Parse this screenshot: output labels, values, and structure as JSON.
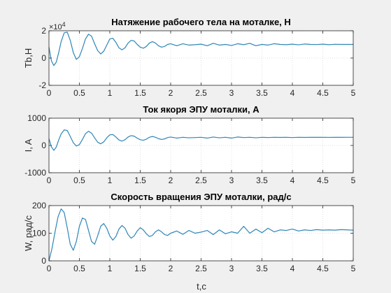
{
  "figure": {
    "xlabel": "t,c"
  },
  "chart_data": [
    {
      "type": "line",
      "title": "Натяжение рабочего тела на моталке, Н",
      "ylabel": "Tb,H",
      "exponent_base": "×10",
      "exponent_power": "4",
      "xlim": [
        0,
        5
      ],
      "ylim": [
        -2,
        2
      ],
      "xticks": [
        0,
        0.5,
        1,
        1.5,
        2,
        2.5,
        3,
        3.5,
        4,
        4.5,
        5
      ],
      "yticks": [
        -2,
        0,
        2
      ],
      "grid": true,
      "line_color": "#2e86b8",
      "series": [
        {
          "x": [
            0,
            0.04,
            0.08,
            0.12,
            0.16,
            0.2,
            0.25,
            0.3,
            0.35,
            0.4,
            0.45,
            0.5,
            0.55,
            0.6,
            0.65,
            0.7,
            0.75,
            0.8,
            0.85,
            0.9,
            0.95,
            1.0,
            1.05,
            1.1,
            1.15,
            1.2,
            1.25,
            1.3,
            1.35,
            1.4,
            1.45,
            1.5,
            1.55,
            1.6,
            1.65,
            1.7,
            1.75,
            1.8,
            1.85,
            1.9,
            1.95,
            2.0,
            2.1,
            2.2,
            2.3,
            2.4,
            2.5,
            2.6,
            2.7,
            2.8,
            2.9,
            3.0,
            3.1,
            3.2,
            3.3,
            3.4,
            3.5,
            3.6,
            3.7,
            3.8,
            3.9,
            4.0,
            4.1,
            4.2,
            4.3,
            4.4,
            4.5,
            4.6,
            4.7,
            4.8,
            4.9,
            5.0
          ],
          "y": [
            0.8,
            -0.2,
            -0.55,
            -0.3,
            0.4,
            1.2,
            1.85,
            1.9,
            1.3,
            0.4,
            -0.1,
            0.1,
            0.7,
            1.4,
            1.75,
            1.6,
            1.05,
            0.55,
            0.3,
            0.5,
            0.95,
            1.4,
            1.45,
            1.15,
            0.75,
            0.6,
            0.75,
            1.1,
            1.3,
            1.25,
            1.0,
            0.8,
            0.72,
            0.85,
            1.1,
            1.2,
            1.1,
            0.9,
            0.8,
            0.85,
            1.0,
            1.05,
            0.9,
            1.05,
            0.95,
            0.98,
            1.02,
            0.9,
            1.08,
            0.95,
            1.0,
            0.92,
            1.05,
            0.98,
            1.08,
            0.9,
            1.0,
            0.95,
            1.05,
            1.0,
            0.98,
            1.02,
            0.97,
            1.03,
            1.0,
            0.99,
            1.02,
            0.98,
            1.01,
            1.0,
            1.0,
            1.0
          ]
        }
      ]
    },
    {
      "type": "line",
      "title": "Ток якоря ЭПУ моталки, А",
      "ylabel": "I, A",
      "xlim": [
        0,
        5
      ],
      "ylim": [
        -1000,
        1000
      ],
      "xticks": [
        0,
        0.5,
        1,
        1.5,
        2,
        2.5,
        3,
        3.5,
        4,
        4.5,
        5
      ],
      "yticks": [
        -1000,
        0,
        1000
      ],
      "grid": true,
      "line_color": "#2e86b8",
      "series": [
        {
          "x": [
            0,
            0.04,
            0.08,
            0.12,
            0.16,
            0.2,
            0.25,
            0.3,
            0.35,
            0.4,
            0.45,
            0.5,
            0.55,
            0.6,
            0.65,
            0.7,
            0.75,
            0.8,
            0.85,
            0.9,
            0.95,
            1.0,
            1.05,
            1.1,
            1.15,
            1.2,
            1.25,
            1.3,
            1.35,
            1.4,
            1.45,
            1.5,
            1.55,
            1.6,
            1.65,
            1.7,
            1.75,
            1.8,
            1.85,
            1.9,
            1.95,
            2.0,
            2.1,
            2.2,
            2.3,
            2.4,
            2.5,
            2.6,
            2.7,
            2.8,
            2.9,
            3.0,
            3.1,
            3.2,
            3.3,
            3.4,
            3.5,
            3.6,
            3.7,
            3.8,
            3.9,
            4.0,
            4.1,
            4.2,
            4.3,
            4.4,
            4.5,
            4.6,
            4.7,
            4.8,
            4.9,
            5.0
          ],
          "y": [
            250,
            -50,
            -180,
            -60,
            200,
            420,
            570,
            550,
            330,
            100,
            -20,
            30,
            220,
            430,
            520,
            450,
            280,
            120,
            60,
            130,
            280,
            390,
            400,
            310,
            200,
            160,
            210,
            310,
            360,
            340,
            270,
            210,
            190,
            230,
            300,
            330,
            300,
            250,
            220,
            240,
            290,
            310,
            270,
            300,
            280,
            290,
            300,
            270,
            310,
            280,
            300,
            270,
            310,
            290,
            300,
            280,
            300,
            290,
            300,
            295,
            300,
            290,
            300,
            295,
            300,
            298,
            300,
            296,
            300,
            298,
            300,
            300
          ]
        }
      ]
    },
    {
      "type": "line",
      "title": "Скорость вращения ЭПУ моталки, рад/с",
      "ylabel": "W, рад/с",
      "xlim": [
        0,
        5
      ],
      "ylim": [
        0,
        200
      ],
      "xticks": [
        0,
        0.5,
        1,
        1.5,
        2,
        2.5,
        3,
        3.5,
        4,
        4.5,
        5
      ],
      "yticks": [
        0,
        100,
        200
      ],
      "grid": true,
      "line_color": "#2e86b8",
      "series": [
        {
          "x": [
            0,
            0.05,
            0.1,
            0.15,
            0.2,
            0.25,
            0.3,
            0.35,
            0.4,
            0.45,
            0.5,
            0.55,
            0.6,
            0.65,
            0.7,
            0.75,
            0.8,
            0.85,
            0.9,
            0.95,
            1.0,
            1.05,
            1.1,
            1.15,
            1.2,
            1.25,
            1.3,
            1.35,
            1.4,
            1.45,
            1.5,
            1.55,
            1.6,
            1.65,
            1.7,
            1.75,
            1.8,
            1.85,
            1.9,
            1.95,
            2.0,
            2.1,
            2.2,
            2.3,
            2.4,
            2.5,
            2.6,
            2.7,
            2.8,
            2.9,
            3.0,
            3.1,
            3.2,
            3.3,
            3.4,
            3.5,
            3.6,
            3.7,
            3.8,
            3.9,
            4.0,
            4.1,
            4.2,
            4.3,
            4.4,
            4.5,
            4.6,
            4.7,
            4.8,
            4.9,
            5.0
          ],
          "y": [
            0,
            45,
            105,
            160,
            188,
            175,
            120,
            60,
            38,
            70,
            125,
            155,
            150,
            110,
            70,
            60,
            90,
            125,
            135,
            118,
            90,
            75,
            88,
            115,
            128,
            118,
            95,
            82,
            90,
            108,
            120,
            112,
            98,
            88,
            92,
            105,
            112,
            105,
            95,
            92,
            100,
            108,
            96,
            110,
            100,
            104,
            110,
            95,
            112,
            98,
            105,
            100,
            125,
            100,
            115,
            102,
            118,
            105,
            112,
            110,
            115,
            108,
            112,
            110,
            113,
            111,
            112,
            111,
            113,
            112,
            111
          ]
        }
      ]
    }
  ]
}
